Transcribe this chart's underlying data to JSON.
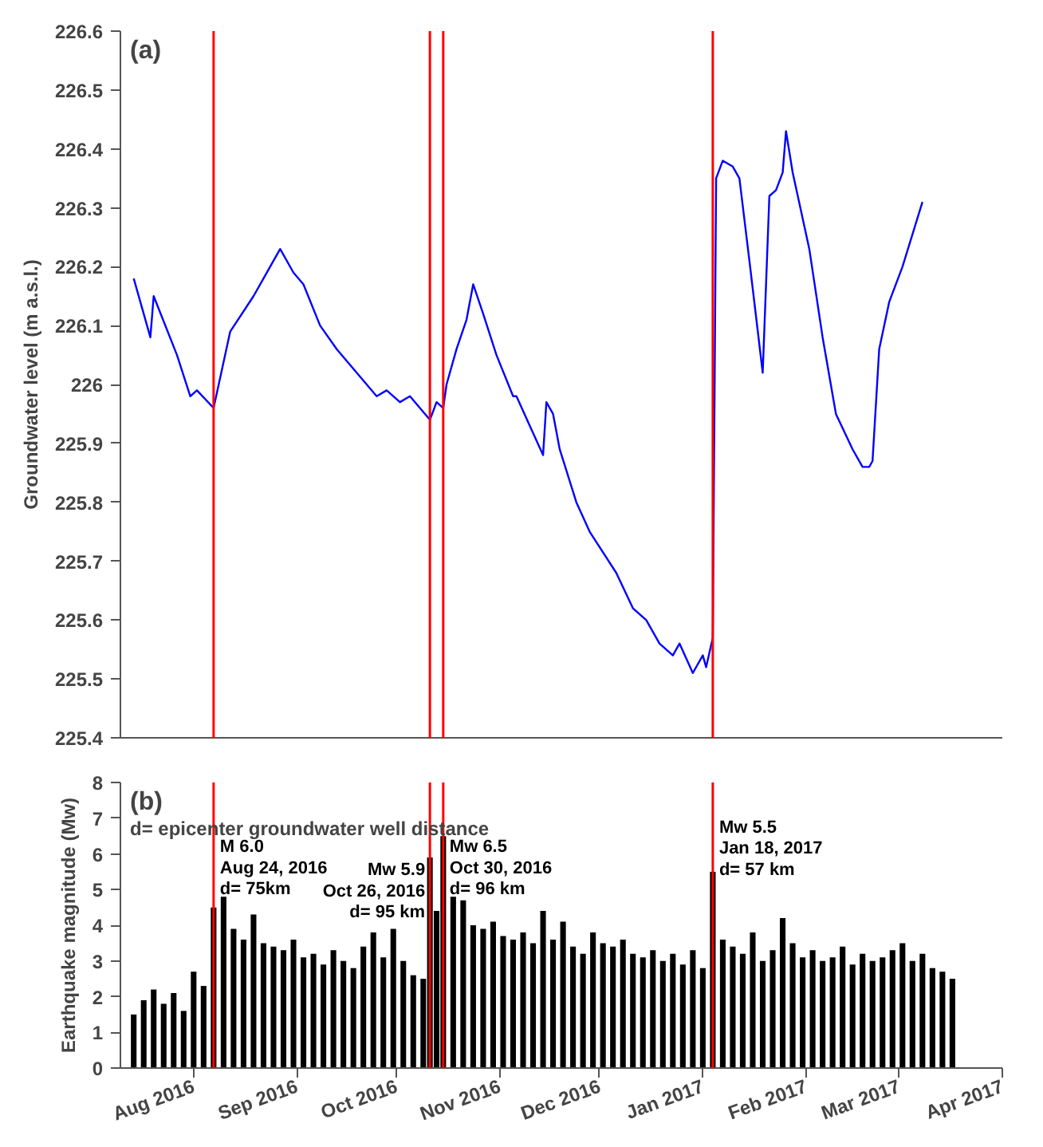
{
  "chart_data": [
    {
      "type": "line",
      "ylabel": "Groundwater level (m a.s.l.)",
      "annotations": [
        "(a)"
      ],
      "x": [
        "2016-07-14",
        "2016-07-19",
        "2016-07-20",
        "2016-07-27",
        "2016-07-31",
        "2016-08-02",
        "2016-08-07",
        "2016-08-12",
        "2016-08-19",
        "2016-08-22",
        "2016-08-27",
        "2016-08-31",
        "2016-09-03",
        "2016-09-08",
        "2016-09-13",
        "2016-09-19",
        "2016-09-25",
        "2016-09-28",
        "2016-10-02",
        "2016-10-05",
        "2016-10-11",
        "2016-10-13",
        "2016-10-15",
        "2016-10-16",
        "2016-10-19",
        "2016-10-22",
        "2016-10-24",
        "2016-10-27",
        "2016-10-31",
        "2016-11-05",
        "2016-11-06",
        "2016-11-10",
        "2016-11-14",
        "2016-11-15",
        "2016-11-17",
        "2016-11-19",
        "2016-11-24",
        "2016-11-28",
        "2016-12-06",
        "2016-12-11",
        "2016-12-15",
        "2016-12-19",
        "2016-12-23",
        "2016-12-25",
        "2016-12-29",
        "2017-01-01",
        "2017-01-02",
        "2017-01-04",
        "2017-01-05",
        "2017-01-07",
        "2017-01-10",
        "2017-01-12",
        "2017-01-15",
        "2017-01-19",
        "2017-01-21",
        "2017-01-23",
        "2017-01-25",
        "2017-01-26",
        "2017-01-28",
        "2017-02-02",
        "2017-02-06",
        "2017-02-10",
        "2017-02-15",
        "2017-02-18",
        "2017-02-20",
        "2017-02-21",
        "2017-02-23",
        "2017-02-26",
        "2017-03-02",
        "2017-03-08"
      ],
      "series": [
        {
          "color": "#0000ff",
          "values": [
            226.18,
            226.08,
            226.15,
            226.05,
            225.98,
            225.99,
            225.96,
            226.09,
            226.15,
            226.18,
            226.23,
            226.19,
            226.17,
            226.1,
            226.06,
            226.02,
            225.98,
            225.99,
            225.97,
            225.98,
            225.94,
            225.97,
            225.96,
            226.0,
            226.06,
            226.11,
            226.17,
            226.12,
            226.05,
            225.98,
            225.98,
            225.93,
            225.88,
            225.97,
            225.95,
            225.89,
            225.8,
            225.75,
            225.68,
            225.62,
            225.6,
            225.56,
            225.54,
            225.56,
            225.51,
            225.54,
            225.52,
            225.57,
            226.35,
            226.38,
            226.37,
            226.35,
            226.21,
            226.02,
            226.32,
            226.33,
            226.36,
            226.43,
            226.36,
            226.23,
            226.08,
            225.95,
            225.89,
            225.86,
            225.86,
            225.87,
            226.06,
            226.14,
            226.2,
            226.31
          ]
        }
      ],
      "xlim": [
        "2016-07-10",
        "2017-04-01"
      ],
      "ylim": [
        225.4,
        226.6
      ],
      "yticks": [
        225.4,
        225.5,
        225.6,
        225.7,
        225.8,
        225.9,
        226,
        226.1,
        226.2,
        226.3,
        226.4,
        226.5,
        226.6
      ],
      "tick_labels": "y",
      "grid": false,
      "line_style": "solid",
      "marker": "none",
      "ref_lines": [
        {
          "axis": "x",
          "value": "2016-08-07",
          "color": "#ff0000"
        },
        {
          "axis": "x",
          "value": "2016-10-11",
          "color": "#ff0000"
        },
        {
          "axis": "x",
          "value": "2016-10-15",
          "color": "#ff0000"
        },
        {
          "axis": "x",
          "value": "2017-01-04",
          "color": "#ff0000"
        }
      ]
    },
    {
      "type": "bar",
      "ylabel": "Earthquake magnitude (Mw)",
      "annotations": [
        "(b)",
        "d= epicenter groundwater well distance",
        {
          "text": "M 6.0\nAug 24, 2016\nd= 75km",
          "x": "2016-08-07",
          "y": 6.45
        },
        {
          "text": "Mw 5.9\nOct 26, 2016\nd= 95 km",
          "x": "2016-10-11",
          "y": 5.8
        },
        {
          "text": "Mw 6.5\nOct 30, 2016\nd= 96 km",
          "x": "2016-10-15",
          "y": 6.45
        },
        {
          "text": "Mw 5.5\nJan 18, 2017\nd= 57 km",
          "x": "2017-01-04",
          "y": 7.0
        }
      ],
      "x": [
        "2016-07-14",
        "2016-07-17",
        "2016-07-20",
        "2016-07-23",
        "2016-07-26",
        "2016-07-29",
        "2016-08-01",
        "2016-08-04",
        "2016-08-07",
        "2016-08-10",
        "2016-08-13",
        "2016-08-16",
        "2016-08-19",
        "2016-08-22",
        "2016-08-25",
        "2016-08-28",
        "2016-08-31",
        "2016-09-03",
        "2016-09-06",
        "2016-09-09",
        "2016-09-12",
        "2016-09-15",
        "2016-09-18",
        "2016-09-21",
        "2016-09-24",
        "2016-09-27",
        "2016-09-30",
        "2016-10-03",
        "2016-10-06",
        "2016-10-09",
        "2016-10-11",
        "2016-10-13",
        "2016-10-15",
        "2016-10-18",
        "2016-10-21",
        "2016-10-24",
        "2016-10-27",
        "2016-10-30",
        "2016-11-02",
        "2016-11-05",
        "2016-11-08",
        "2016-11-11",
        "2016-11-14",
        "2016-11-17",
        "2016-11-20",
        "2016-11-23",
        "2016-11-26",
        "2016-11-29",
        "2016-12-02",
        "2016-12-05",
        "2016-12-08",
        "2016-12-11",
        "2016-12-14",
        "2016-12-17",
        "2016-12-20",
        "2016-12-23",
        "2016-12-26",
        "2016-12-29",
        "2017-01-01",
        "2017-01-04",
        "2017-01-07",
        "2017-01-10",
        "2017-01-13",
        "2017-01-16",
        "2017-01-19",
        "2017-01-22",
        "2017-01-25",
        "2017-01-28",
        "2017-01-31",
        "2017-02-03",
        "2017-02-06",
        "2017-02-09",
        "2017-02-12",
        "2017-02-15",
        "2017-02-18",
        "2017-02-21",
        "2017-02-24",
        "2017-02-27",
        "2017-03-02",
        "2017-03-05",
        "2017-03-08",
        "2017-03-11",
        "2017-03-14",
        "2017-03-17"
      ],
      "series": [
        {
          "color": "#000000",
          "values": [
            1.5,
            1.9,
            2.2,
            1.8,
            2.1,
            1.6,
            2.7,
            2.3,
            4.5,
            4.8,
            3.9,
            3.6,
            4.3,
            3.5,
            3.4,
            3.3,
            3.6,
            3.1,
            3.2,
            2.9,
            3.3,
            3.0,
            2.8,
            3.4,
            3.8,
            3.1,
            3.9,
            3.0,
            2.6,
            2.5,
            5.9,
            4.4,
            6.5,
            4.8,
            4.7,
            4.0,
            3.9,
            4.1,
            3.7,
            3.6,
            3.8,
            3.5,
            4.4,
            3.6,
            4.1,
            3.4,
            3.2,
            3.8,
            3.5,
            3.4,
            3.6,
            3.2,
            3.1,
            3.3,
            3.0,
            3.2,
            2.9,
            3.3,
            2.8,
            5.5,
            3.6,
            3.4,
            3.2,
            3.8,
            3.0,
            3.3,
            4.2,
            3.5,
            3.1,
            3.3,
            3.0,
            3.1,
            3.4,
            2.9,
            3.2,
            3.0,
            3.1,
            3.3,
            3.5,
            3.0,
            3.2,
            2.8,
            2.7,
            2.5
          ]
        }
      ],
      "xlim": [
        "2016-07-10",
        "2017-04-01"
      ],
      "ylim": [
        0,
        8
      ],
      "yticks": [
        0,
        1,
        2,
        3,
        4,
        5,
        6,
        7,
        8
      ],
      "xticks": [
        {
          "value": "2016-08-01",
          "label": "Aug 2016"
        },
        {
          "value": "2016-09-01",
          "label": "Sep 2016"
        },
        {
          "value": "2016-10-01",
          "label": "Oct 2016"
        },
        {
          "value": "2016-11-01",
          "label": "Nov 2016"
        },
        {
          "value": "2016-12-01",
          "label": "Dec 2016"
        },
        {
          "value": "2017-01-01",
          "label": "Jan 2017"
        },
        {
          "value": "2017-02-01",
          "label": "Feb 2017"
        },
        {
          "value": "2017-03-01",
          "label": "Mar 2017"
        },
        {
          "value": "2017-04-01",
          "label": "Apr 2017"
        }
      ],
      "grid": false,
      "ref_lines": [
        {
          "axis": "x",
          "value": "2016-08-07",
          "color": "#ff0000"
        },
        {
          "axis": "x",
          "value": "2016-10-11",
          "color": "#ff0000"
        },
        {
          "axis": "x",
          "value": "2016-10-15",
          "color": "#ff0000"
        },
        {
          "axis": "x",
          "value": "2017-01-04",
          "color": "#ff0000"
        }
      ]
    }
  ]
}
